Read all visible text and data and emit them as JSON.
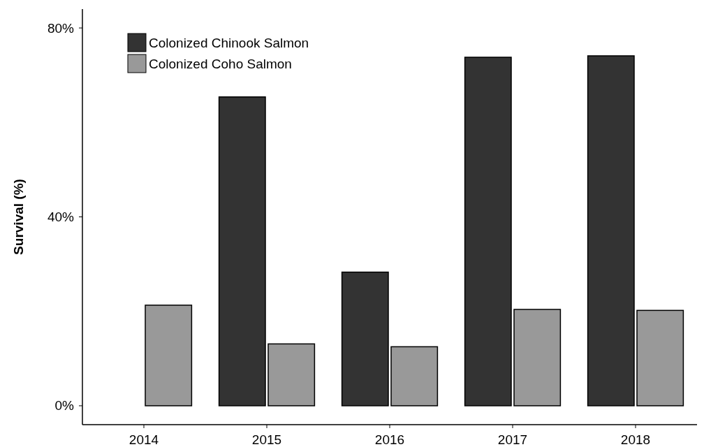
{
  "chart_data": {
    "type": "bar",
    "ylabel": "Survival (%)",
    "categories": [
      "2014",
      "2015",
      "2016",
      "2017",
      "2018"
    ],
    "series": [
      {
        "name": "Colonized Chinook Salmon",
        "color": "#333333",
        "values": [
          null,
          65.4,
          28.3,
          73.8,
          74.1
        ]
      },
      {
        "name": "Colonized Coho Salmon",
        "color": "#999999",
        "values": [
          21.3,
          13.1,
          12.5,
          20.4,
          20.2
        ]
      }
    ],
    "ylim": [
      -4,
      84
    ],
    "yticks": [
      {
        "value": 0,
        "label": "0%"
      },
      {
        "value": 40,
        "label": "40%"
      },
      {
        "value": 80,
        "label": "80%"
      }
    ],
    "legend": "top left"
  }
}
